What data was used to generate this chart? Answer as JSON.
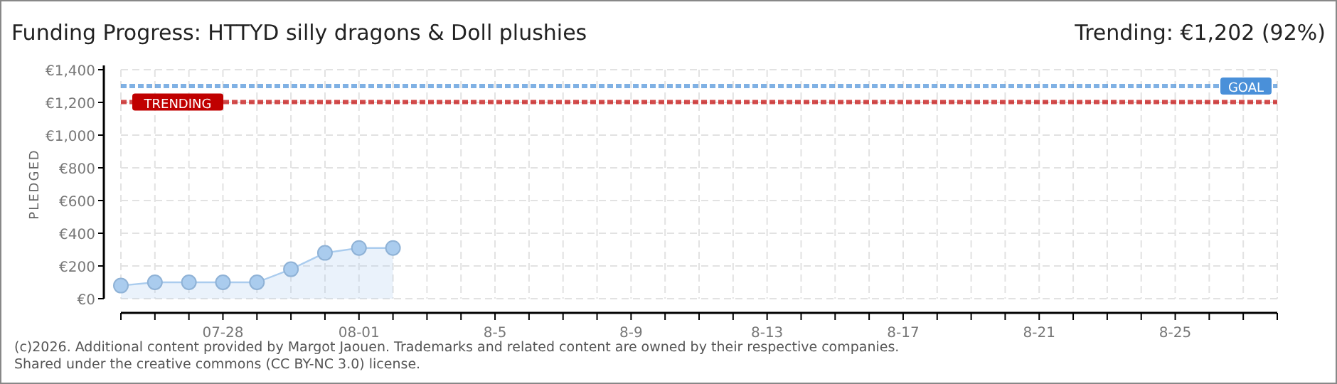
{
  "chart_data": {
    "type": "area",
    "title": "Funding Progress: HTTYD silly dragons & Doll plushies",
    "subtitle": "Trending: €1,202 (92%)",
    "ylabel": "PLEDGED",
    "x": [
      "--07-25",
      "--07-26",
      "--07-27",
      "--07-28",
      "--07-29",
      "--07-30",
      "--07-31",
      "--08-01",
      "--08-02"
    ],
    "series": [
      {
        "color": "#aaccee",
        "values": [
          80,
          100,
          100,
          100,
          100,
          180,
          280,
          310,
          310
        ]
      }
    ],
    "marker": "circle",
    "grid": true,
    "xlim": [
      "--07-25",
      "--08-28"
    ],
    "xticks": [
      {
        "value": "--07-25",
        "label": null
      },
      {
        "value": "--07-26",
        "label": null
      },
      {
        "value": "--07-27",
        "label": null
      },
      {
        "value": "--07-28",
        "label": "07-28"
      },
      {
        "value": "--07-29",
        "label": null
      },
      {
        "value": "--07-30",
        "label": null
      },
      {
        "value": "--07-31",
        "label": null
      },
      {
        "value": "--08-01",
        "label": "08-01"
      },
      {
        "value": "--08-02",
        "label": null
      },
      {
        "value": "--08-03",
        "label": null
      },
      {
        "value": "--08-04",
        "label": null
      },
      {
        "value": "--08-05",
        "label": "8-5"
      },
      {
        "value": "--08-06",
        "label": null
      },
      {
        "value": "--08-07",
        "label": null
      },
      {
        "value": "--08-08",
        "label": null
      },
      {
        "value": "--08-09",
        "label": "8-9"
      },
      {
        "value": "--08-10",
        "label": null
      },
      {
        "value": "--08-11",
        "label": null
      },
      {
        "value": "--08-12",
        "label": null
      },
      {
        "value": "--08-13",
        "label": "8-13"
      },
      {
        "value": "--08-14",
        "label": null
      },
      {
        "value": "--08-15",
        "label": null
      },
      {
        "value": "--08-16",
        "label": null
      },
      {
        "value": "--08-17",
        "label": "8-17"
      },
      {
        "value": "--08-18",
        "label": null
      },
      {
        "value": "--08-19",
        "label": null
      },
      {
        "value": "--08-20",
        "label": null
      },
      {
        "value": "--08-21",
        "label": "8-21"
      },
      {
        "value": "--08-22",
        "label": null
      },
      {
        "value": "--08-23",
        "label": null
      },
      {
        "value": "--08-24",
        "label": null
      },
      {
        "value": "--08-25",
        "label": "8-25"
      },
      {
        "value": "--08-26",
        "label": null
      },
      {
        "value": "--08-27",
        "label": null
      },
      {
        "value": "--08-28",
        "label": null
      }
    ],
    "ylim": [
      0,
      1400
    ],
    "yticks": [
      {
        "value": 0,
        "label": "€0"
      },
      {
        "value": 200,
        "label": "€200"
      },
      {
        "value": 400,
        "label": "€400"
      },
      {
        "value": 600,
        "label": "€600"
      },
      {
        "value": 800,
        "label": "€800"
      },
      {
        "value": 1000,
        "label": "€1,000"
      },
      {
        "value": 1200,
        "label": "€1,200"
      },
      {
        "value": 1400,
        "label": "€1,400"
      }
    ],
    "ref_lines": [
      {
        "axis": "y",
        "value": 1300,
        "label": "GOAL",
        "color": "#4a90d9",
        "line_style": "dashed"
      },
      {
        "axis": "y",
        "value": 1202,
        "label": "TRENDING",
        "color": "#c00000",
        "line_style": "dashed"
      }
    ],
    "annotations": [
      "(c)2026. Additional content provided by Margot Jaouen. Trademarks and related content are owned by their respective companies.",
      "Shared under the creative commons (CC BY-NC 3.0) license."
    ]
  }
}
